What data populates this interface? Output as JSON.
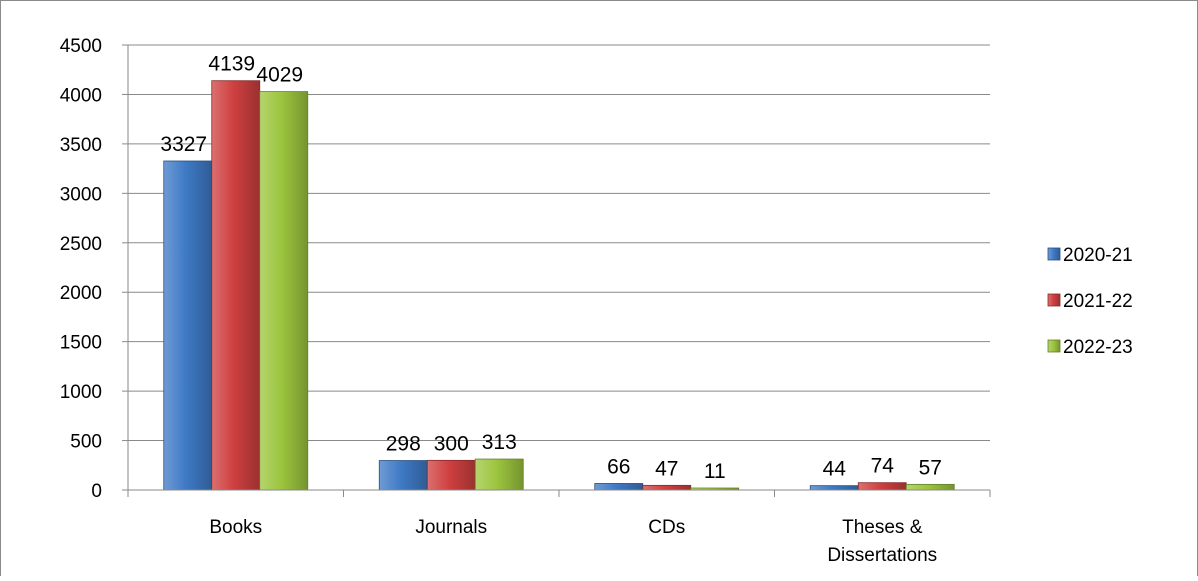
{
  "chart_data": {
    "type": "bar",
    "categories": [
      [
        "Books"
      ],
      [
        "Journals"
      ],
      [
        "CDs"
      ],
      [
        "Theses &",
        "Dissertations"
      ]
    ],
    "series": [
      {
        "name": "2020-21",
        "values": [
          3327,
          298,
          66,
          44
        ],
        "color": "#3f7ac6"
      },
      {
        "name": "2021-22",
        "values": [
          4139,
          300,
          47,
          74
        ],
        "color": "#cf4040"
      },
      {
        "name": "2022-23",
        "values": [
          4029,
          313,
          11,
          57
        ],
        "color": "#9cc53e"
      }
    ],
    "ylim": [
      0,
      4500
    ],
    "yticks": [
      0,
      500,
      1000,
      1500,
      2000,
      2500,
      3000,
      3500,
      4000,
      4500
    ],
    "grid": true,
    "legend": "right"
  }
}
